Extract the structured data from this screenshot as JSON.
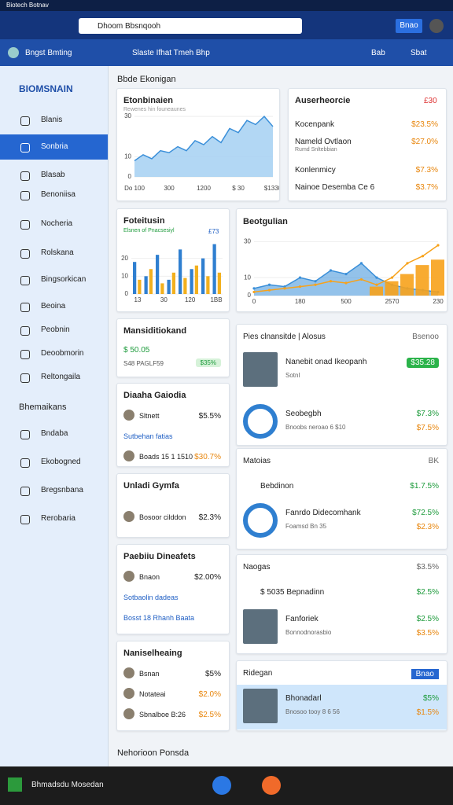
{
  "window": {
    "title": "Biotech Botnav",
    "address": "Dhoom Bbsnqooh",
    "button": "Bnao"
  },
  "toolbar": {
    "account": "Bngst Bmting",
    "links": "Slaste  Ifhat Tmeh Bhp",
    "actions": [
      "Bab",
      "Sbat"
    ]
  },
  "sidebar": {
    "brand": "BIOMSNAIN",
    "items": [
      "Blanis",
      "Sonbria",
      "Blasab",
      "Benoniisa",
      "Nocheria",
      "Rolskana",
      "Bingsorkican",
      "Beoina",
      "Peobnin",
      "Deoobmorin",
      "Reltongaila"
    ],
    "section": "Bhemaikans",
    "items2": [
      "Bndaba",
      "Ekobogned",
      "Bregsnbana",
      "Rerobaria"
    ]
  },
  "main": {
    "heading": "Bbde Ekonigan",
    "footer": "Nehorioon Ponsda"
  },
  "area_chart": {
    "title": "Etonbinaien",
    "subtitle": "Rewenes hin founeaunes",
    "color": "#3a8fd9",
    "ylim": [
      0,
      32
    ],
    "yticks": [
      0,
      10,
      30
    ],
    "categories": [
      "Do 100",
      "300",
      "1200",
      "$ 30",
      "$1330"
    ],
    "values": [
      8,
      11,
      9,
      13,
      12,
      15,
      13,
      18,
      16,
      20,
      17,
      24,
      22,
      28,
      26,
      30,
      25
    ]
  },
  "summary": {
    "title": "Auserheorcie",
    "tag": "£30",
    "rows": [
      [
        "Kocenpank",
        "",
        "$23.5%"
      ],
      [
        "Nameld Ovtlaon",
        "Rumd Snltebbian",
        "$27.0%"
      ],
      [
        "Konlenmicy",
        "",
        "$7.3%"
      ],
      [
        "Nainoe Desemba Ce 6",
        "",
        "$3.7%"
      ]
    ]
  },
  "bar_chart": {
    "title": "Foteitusin",
    "tag": "£73",
    "subtitle": "Elsnen of Pnacsesiyl",
    "ylim": [
      0,
      30
    ],
    "yticks": [
      0,
      10,
      20
    ],
    "categories": [
      "13",
      "30",
      "120",
      "1BB"
    ],
    "series": [
      {
        "color": "#2f7fd0",
        "values": [
          18,
          10,
          22,
          8,
          25,
          14,
          20,
          28
        ]
      },
      {
        "color": "#f2b01e",
        "values": [
          8,
          14,
          6,
          12,
          9,
          16,
          10,
          12
        ]
      }
    ]
  },
  "combo_chart": {
    "title": "Beotgulian",
    "ylim": [
      0,
      35
    ],
    "yticks": [
      0,
      10,
      30
    ],
    "categories": [
      "0",
      "180",
      "500",
      "2570",
      "230"
    ],
    "series": [
      {
        "kind": "area",
        "color": "#3a8fd9",
        "values": [
          4,
          6,
          5,
          10,
          8,
          14,
          12,
          18,
          10,
          6,
          4,
          3,
          2
        ]
      },
      {
        "kind": "bar",
        "color": "#f7a21b",
        "values": [
          0,
          0,
          0,
          0,
          0,
          0,
          0,
          0,
          5,
          8,
          12,
          17,
          20
        ]
      },
      {
        "kind": "line",
        "color": "#f7a21b",
        "values": [
          2,
          3,
          4,
          5,
          6,
          8,
          7,
          9,
          6,
          10,
          18,
          22,
          28
        ]
      }
    ]
  },
  "left_cards": [
    {
      "title": "Mansiditiokand",
      "value": "$ 50.05",
      "sub": "S48 PAGLF59",
      "badge": "$35%"
    },
    {
      "title": "Diaaha Gaiodia",
      "rows": [
        [
          "Sltnett",
          "$5.5%"
        ],
        [
          "Sutbehan fatias",
          ""
        ],
        [
          "Boads 15 1 1510",
          "$30.7%"
        ]
      ]
    },
    {
      "title": "Unladi Gymfa",
      "rows": [
        [
          "Bosoor cilddon",
          "$2.3%"
        ]
      ]
    },
    {
      "title": "Paebiiu Dineafets",
      "rows": [
        [
          "Bnaon",
          "$2.00%"
        ],
        [
          "Sotbaolin dadeas",
          ""
        ],
        [
          "Bosst  18  Rhanh Baata",
          ""
        ]
      ]
    },
    {
      "title": "Naniselheaing",
      "rows": [
        [
          "Bsnan",
          "$5%"
        ],
        [
          "Notateai",
          "$2.0%"
        ],
        [
          "Sbnalboe B:26",
          "$2.5%"
        ]
      ]
    }
  ],
  "right_sections": [
    {
      "title": "Pies clnansitde | Alosus",
      "aside": "Bsenoo",
      "rows": [
        [
          "Nanebit onad Ikeopanh",
          "Sotnl",
          "$35.28",
          ""
        ],
        [
          "Seobegbh",
          "Bnoobs neroao  6  $10",
          "$7.3%",
          "$7.5%"
        ]
      ]
    },
    {
      "title": "Matoias",
      "aside": "BK",
      "rows": [
        [
          "Bebdinon",
          "",
          "$1.7.5%",
          ""
        ],
        [
          "Fanrdo Didecomhank",
          "Foamsd Bn 35",
          "$72.5%",
          "$2.3%"
        ]
      ]
    },
    {
      "title": "Naogas",
      "aside": "$3.5%",
      "rows": [
        [
          "$ 5035  Bepnadinn",
          "",
          "$2.5%",
          ""
        ],
        [
          "Fanforiek",
          "Bonnodnorasbio",
          "$2.5%",
          "$3.5%"
        ]
      ]
    },
    {
      "title": "Ridegan",
      "aside": "Bnao",
      "rows": [
        [
          "Bhonadarl",
          "Bnosoo tooy 8 6 56",
          "$5%",
          "$1.5%"
        ]
      ]
    }
  ],
  "taskbar": {
    "label": "Bhmadsdu Mosedan"
  }
}
